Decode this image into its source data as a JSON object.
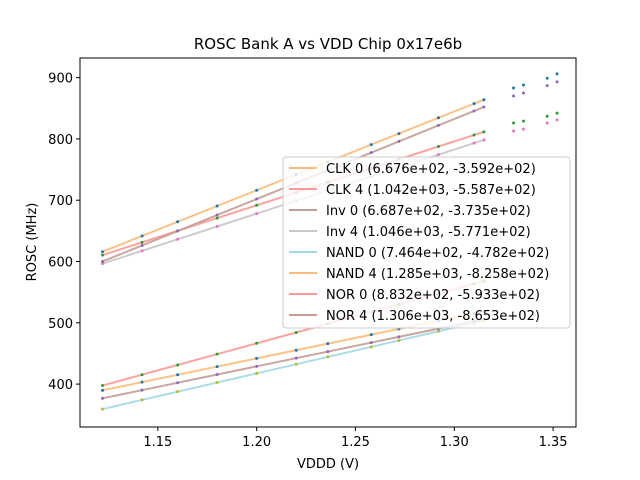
{
  "chart_data": {
    "type": "line",
    "title": "ROSC Bank A vs VDD Chip 0x17e6b",
    "xlabel": "VDDD (V)",
    "ylabel": "ROSC (MHz)",
    "xlim": [
      1.1106,
      1.3616
    ],
    "ylim": [
      330,
      932
    ],
    "xticks": [
      1.15,
      1.2,
      1.25,
      1.3,
      1.35
    ],
    "xtick_labels": [
      "1.15",
      "1.20",
      "1.25",
      "1.30",
      "1.35"
    ],
    "yticks": [
      400,
      500,
      600,
      700,
      800,
      900
    ],
    "ytick_labels": [
      "400",
      "500",
      "600",
      "700",
      "800",
      "900"
    ],
    "grid": false,
    "legend_position": "center-right",
    "fit_range": [
      1.122,
      1.315
    ],
    "series": [
      {
        "name": "CLK 0",
        "label": "CLK 0 (6.676e+02, -3.592e+02)",
        "slope": 667.6,
        "intercept": -359.2,
        "line_color": "#ffbb78",
        "marker_color": "#1f77b4"
      },
      {
        "name": "CLK 4",
        "label": "CLK 4 (1.042e+03, -5.587e+02)",
        "slope": 1042.0,
        "intercept": -558.7,
        "line_color": "#ff9896",
        "marker_color": "#2ca02c"
      },
      {
        "name": "Inv 0",
        "label": "Inv 0 (6.687e+02, -3.735e+02)",
        "slope": 668.7,
        "intercept": -373.5,
        "line_color": "#c49c94",
        "marker_color": "#9467bd"
      },
      {
        "name": "Inv 4",
        "label": "Inv 4 (1.046e+03, -5.771e+02)",
        "slope": 1046.0,
        "intercept": -577.1,
        "line_color": "#c7c7c7",
        "marker_color": "#e377c2"
      },
      {
        "name": "NAND 0",
        "label": "NAND 0 (7.464e+02, -4.782e+02)",
        "slope": 746.4,
        "intercept": -478.2,
        "line_color": "#9edae5",
        "marker_color": "#bcbd22"
      },
      {
        "name": "NAND 4",
        "label": "NAND 4 (1.285e+03, -8.258e+02)",
        "slope": 1285.0,
        "intercept": -825.8,
        "line_color": "#ffbb78",
        "marker_color": "#1f77b4"
      },
      {
        "name": "NOR 0",
        "label": "NOR 0 (8.832e+02, -5.933e+02)",
        "slope": 883.2,
        "intercept": -593.3,
        "line_color": "#ff9896",
        "marker_color": "#2ca02c"
      },
      {
        "name": "NOR 4",
        "label": "NOR 4 (1.306e+03, -8.653e+02)",
        "slope": 1306.0,
        "intercept": -865.3,
        "line_color": "#c49c94",
        "marker_color": "#9467bd"
      }
    ],
    "scatter_x": [
      1.122,
      1.142,
      1.16,
      1.18,
      1.2,
      1.22,
      1.236,
      1.258,
      1.272,
      1.292,
      1.31,
      1.315
    ],
    "extra_points": [
      {
        "x": 1.33,
        "y": 883,
        "color": "#1f77b4"
      },
      {
        "x": 1.335,
        "y": 888,
        "color": "#1f77b4"
      },
      {
        "x": 1.347,
        "y": 899,
        "color": "#1f77b4"
      },
      {
        "x": 1.352,
        "y": 906,
        "color": "#1f77b4"
      },
      {
        "x": 1.33,
        "y": 870,
        "color": "#9467bd"
      },
      {
        "x": 1.335,
        "y": 875,
        "color": "#9467bd"
      },
      {
        "x": 1.347,
        "y": 887,
        "color": "#9467bd"
      },
      {
        "x": 1.352,
        "y": 893,
        "color": "#9467bd"
      },
      {
        "x": 1.33,
        "y": 826,
        "color": "#2ca02c"
      },
      {
        "x": 1.335,
        "y": 829,
        "color": "#2ca02c"
      },
      {
        "x": 1.347,
        "y": 837,
        "color": "#2ca02c"
      },
      {
        "x": 1.352,
        "y": 842,
        "color": "#2ca02c"
      },
      {
        "x": 1.33,
        "y": 813,
        "color": "#e377c2"
      },
      {
        "x": 1.335,
        "y": 816,
        "color": "#e377c2"
      },
      {
        "x": 1.347,
        "y": 826,
        "color": "#e377c2"
      },
      {
        "x": 1.352,
        "y": 831,
        "color": "#e377c2"
      }
    ]
  }
}
